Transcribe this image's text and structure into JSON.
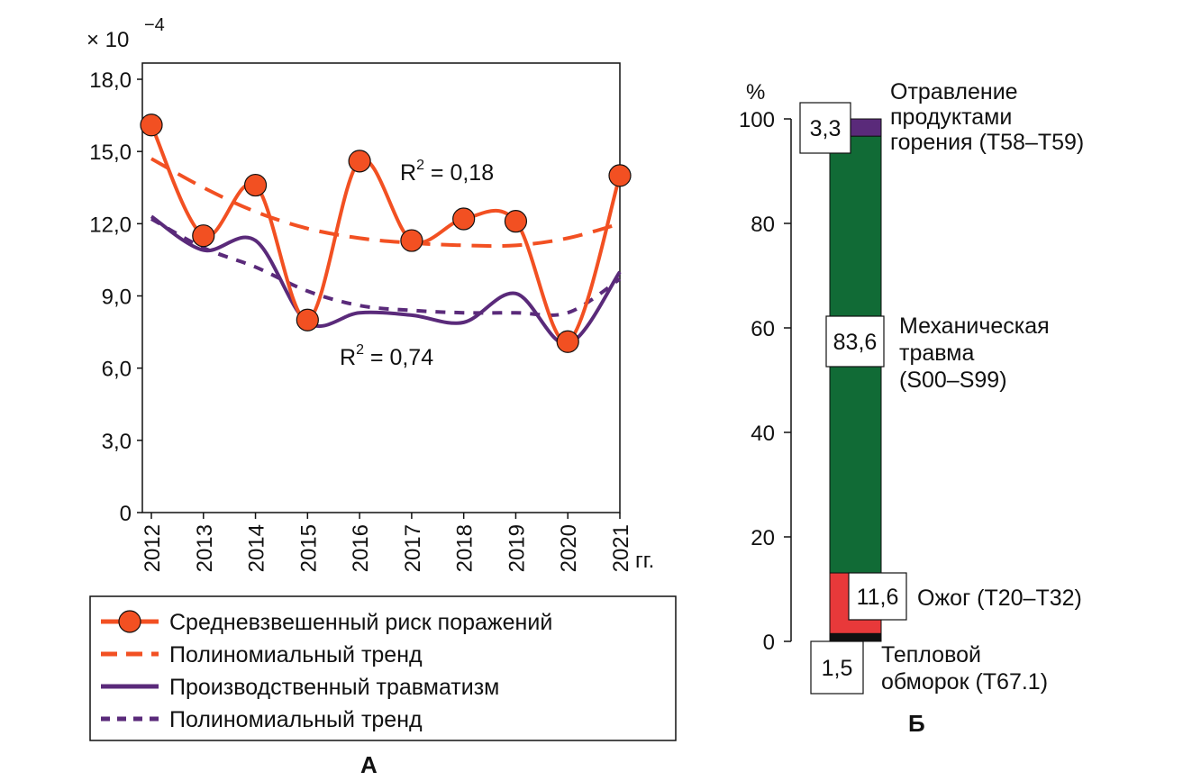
{
  "chart_data": [
    {
      "type": "line",
      "panel_label": "А",
      "scale_label": "× 10",
      "scale_exponent": "−4",
      "x_unit_label": "гг.",
      "x": [
        "2012",
        "2013",
        "2014",
        "2015",
        "2016",
        "2017",
        "2018",
        "2019",
        "2020",
        "2021"
      ],
      "y_ticks": [
        "0",
        "3,0",
        "6,0",
        "9,0",
        "12,0",
        "15,0",
        "18,0"
      ],
      "ylim": [
        0,
        18
      ],
      "grid": false,
      "legend_position": "bottom",
      "series": [
        {
          "name": "Средневзвешенный риск поражений",
          "style": "line-markers",
          "color": "#f25022",
          "values": [
            16.1,
            11.5,
            13.6,
            8.0,
            14.6,
            11.3,
            12.2,
            12.1,
            7.1,
            14.0
          ]
        },
        {
          "name": "Полиномиальный тренд",
          "style": "dashed",
          "color": "#f25022",
          "values": [
            14.7,
            13.5,
            12.5,
            11.8,
            11.4,
            11.2,
            11.1,
            11.1,
            11.4,
            12.0
          ]
        },
        {
          "name": "Производственный травматизм",
          "style": "solid",
          "color": "#5a2a7a",
          "values": [
            12.3,
            10.9,
            11.3,
            7.9,
            8.3,
            8.2,
            7.9,
            9.1,
            7.0,
            10.0
          ]
        },
        {
          "name": "Полиномиальный тренд",
          "style": "dotted",
          "color": "#5a2a7a",
          "values": [
            12.2,
            11.0,
            10.2,
            9.2,
            8.6,
            8.4,
            8.3,
            8.3,
            8.3,
            9.7
          ]
        }
      ],
      "annotations": [
        {
          "text": "R",
          "superscript": "2",
          "rest": " = 0,18"
        },
        {
          "text": "R",
          "superscript": "2",
          "rest": " = 0,74"
        }
      ]
    },
    {
      "type": "bar",
      "stacked": true,
      "panel_label": "Б",
      "y_unit_label": "%",
      "y_ticks": [
        "0",
        "20",
        "40",
        "60",
        "80",
        "100"
      ],
      "ylim": [
        0,
        100
      ],
      "segments": [
        {
          "value": 1.5,
          "label": "1,5",
          "name_lines": [
            "Тепловой",
            "обморок (T67.1)"
          ],
          "color": "#111111"
        },
        {
          "value": 11.6,
          "label": "11,6",
          "name_lines": [
            "Ожог (T20–T32)"
          ],
          "color": "#e8393a"
        },
        {
          "value": 83.6,
          "label": "83,6",
          "name_lines": [
            "Механическая",
            "травма",
            "(S00–S99)"
          ],
          "color": "#116b36"
        },
        {
          "value": 3.3,
          "label": "3,3",
          "name_lines": [
            "Отравление",
            "продуктами",
            "горения (T58–T59)"
          ],
          "color": "#5a2a7a"
        }
      ]
    }
  ]
}
